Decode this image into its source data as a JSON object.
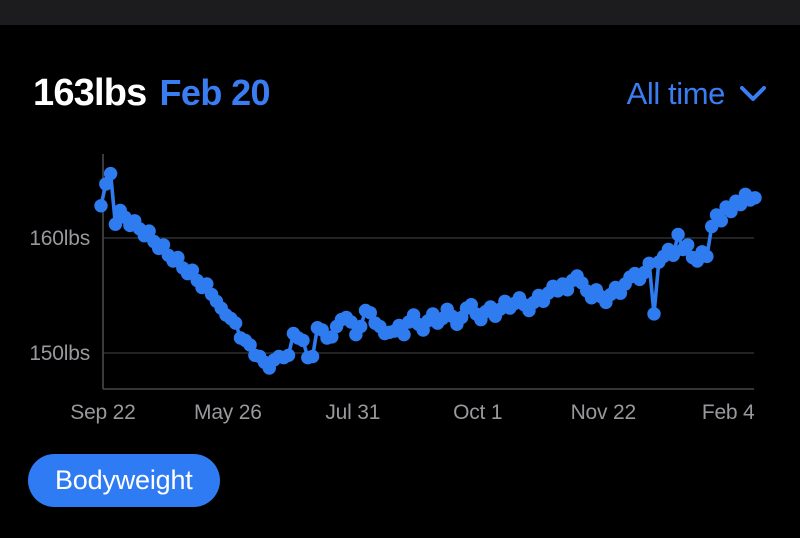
{
  "header": {
    "current_weight": "163lbs",
    "current_date": "Feb 20",
    "range_selector_label": "All time"
  },
  "footer": {
    "series_button_label": "Bodyweight"
  },
  "colors": {
    "background": "#000000",
    "status_strip": "#1C1C1E",
    "accent_text_blue": "#3A7DF3",
    "series_blue": "#2E7CF0",
    "button_blue": "#2F7BF3",
    "label_gray": "#98989D",
    "gridline_gray": "#2F2F32",
    "axis_gray": "#48484A"
  },
  "chart_data": {
    "type": "scatter",
    "unit": "lbs",
    "grid": "horizontal-only",
    "y_ticks": [
      {
        "label": "160lbs",
        "value": 160
      },
      {
        "label": "150lbs",
        "value": 150
      }
    ],
    "x_ticks": [
      {
        "label": "Sep 22",
        "pos": 0.003
      },
      {
        "label": "May 26",
        "pos": 0.194
      },
      {
        "label": "Jul 31",
        "pos": 0.385
      },
      {
        "label": "Oct 1",
        "pos": 0.576
      },
      {
        "label": "Nov 22",
        "pos": 0.768
      },
      {
        "label": "Feb 4",
        "pos": 0.959
      }
    ],
    "ylim": [
      147.5,
      166.5
    ],
    "series": [
      {
        "name": "Bodyweight",
        "color": "#2E7CF0",
        "values": [
          162.8,
          164.7,
          165.6,
          161.2,
          162.4,
          161.8,
          161.1,
          161.5,
          160.8,
          160.2,
          160.6,
          159.7,
          159.1,
          159.4,
          158.5,
          158.0,
          158.3,
          157.4,
          156.9,
          157.2,
          156.3,
          155.7,
          156.0,
          155.1,
          154.5,
          153.9,
          153.3,
          153.0,
          152.6,
          151.3,
          151.1,
          150.7,
          149.8,
          149.7,
          149.2,
          148.7,
          149.4,
          149.7,
          149.6,
          149.8,
          151.7,
          151.3,
          151.1,
          149.6,
          149.7,
          152.2,
          152.0,
          151.3,
          151.4,
          152.3,
          152.9,
          153.1,
          152.7,
          151.6,
          152.3,
          153.7,
          153.5,
          152.6,
          152.3,
          151.7,
          151.8,
          151.9,
          152.4,
          151.6,
          152.7,
          153.3,
          152.5,
          152.0,
          152.8,
          153.4,
          152.6,
          153.0,
          153.8,
          153.2,
          152.5,
          153.1,
          153.9,
          154.2,
          153.4,
          152.9,
          153.6,
          154.0,
          153.2,
          153.8,
          154.5,
          153.9,
          154.3,
          154.8,
          154.2,
          153.7,
          154.4,
          155.0,
          154.5,
          155.2,
          155.8,
          155.4,
          156.0,
          155.5,
          156.3,
          156.7,
          156.1,
          155.4,
          154.8,
          155.5,
          154.9,
          154.4,
          155.1,
          155.7,
          155.2,
          156.0,
          156.6,
          156.9,
          156.4,
          157.0,
          157.8,
          153.4,
          157.9,
          158.4,
          159.0,
          158.5,
          160.3,
          159.0,
          159.4,
          158.3,
          158.0,
          158.8,
          158.4,
          161.0,
          162.0,
          161.5,
          162.7,
          162.3,
          163.2,
          162.9,
          163.8,
          163.3,
          163.5
        ]
      }
    ]
  }
}
